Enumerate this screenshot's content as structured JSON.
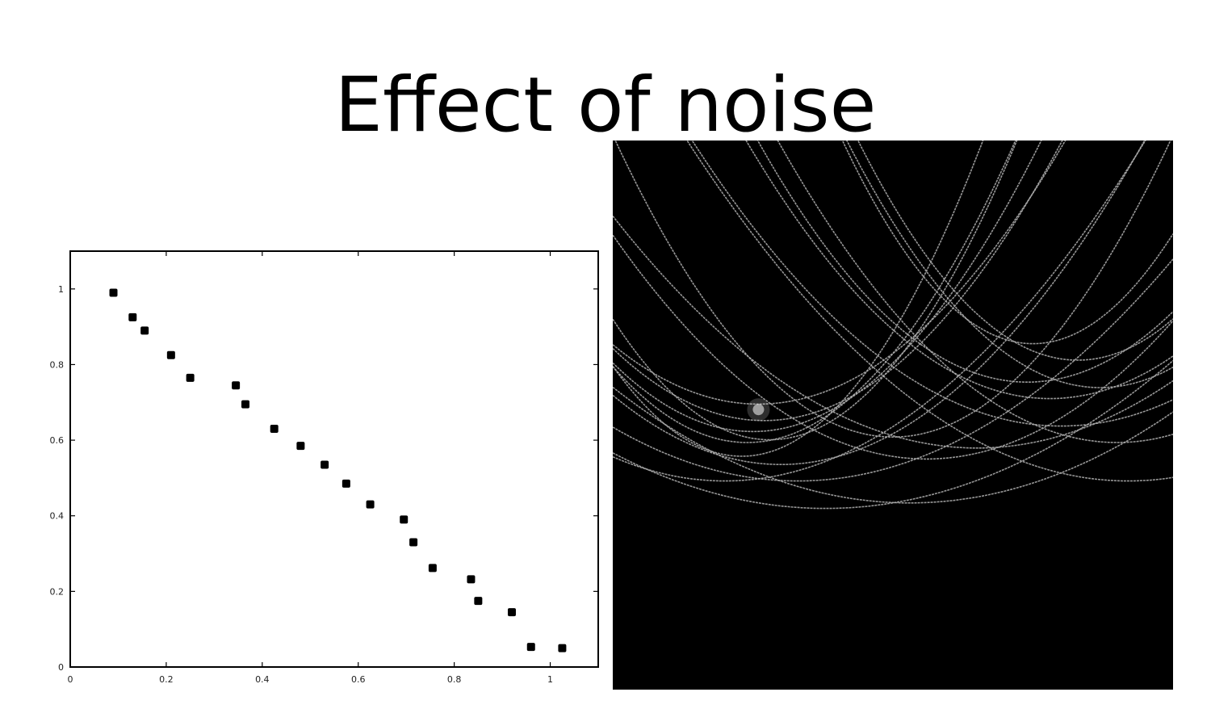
{
  "slide": {
    "title": "Effect of noise"
  },
  "chart_data": [
    {
      "type": "scatter",
      "title": "",
      "xlabel": "",
      "ylabel": "",
      "xlim": [
        0,
        1.1
      ],
      "ylim": [
        0,
        1.1
      ],
      "xticks": [
        0,
        0.2,
        0.4,
        0.6,
        0.8,
        1
      ],
      "xtick_labels": [
        "0",
        "0.2",
        "0.4",
        "0.6",
        "0.8",
        "1"
      ],
      "yticks": [
        0,
        0.2,
        0.4,
        0.6,
        0.8,
        1
      ],
      "ytick_labels": [
        "0",
        "0.2",
        "0.4",
        "0.6",
        "0.8",
        "1"
      ],
      "grid": false,
      "marker_color": "#000000",
      "points": [
        {
          "x": 0.09,
          "y": 0.99
        },
        {
          "x": 0.13,
          "y": 0.925
        },
        {
          "x": 0.155,
          "y": 0.89
        },
        {
          "x": 0.21,
          "y": 0.825
        },
        {
          "x": 0.25,
          "y": 0.765
        },
        {
          "x": 0.345,
          "y": 0.745
        },
        {
          "x": 0.365,
          "y": 0.695
        },
        {
          "x": 0.425,
          "y": 0.63
        },
        {
          "x": 0.48,
          "y": 0.585
        },
        {
          "x": 0.53,
          "y": 0.535
        },
        {
          "x": 0.575,
          "y": 0.485
        },
        {
          "x": 0.625,
          "y": 0.43
        },
        {
          "x": 0.695,
          "y": 0.39
        },
        {
          "x": 0.715,
          "y": 0.33
        },
        {
          "x": 0.755,
          "y": 0.262
        },
        {
          "x": 0.835,
          "y": 0.232
        },
        {
          "x": 0.85,
          "y": 0.175
        },
        {
          "x": 0.92,
          "y": 0.145
        },
        {
          "x": 0.96,
          "y": 0.053
        },
        {
          "x": 1.025,
          "y": 0.05
        }
      ]
    },
    {
      "type": "heatmap",
      "title": "",
      "background": "#000000",
      "line_color": "#b0b0b0",
      "peak_color": "#ffffff",
      "curves": [
        {
          "vertex": [
            0.26,
            0.48
          ],
          "k": 1.6
        },
        {
          "vertex": [
            0.27,
            0.51
          ],
          "k": 1.8
        },
        {
          "vertex": [
            0.25,
            0.53
          ],
          "k": 2.0
        },
        {
          "vertex": [
            0.24,
            0.55
          ],
          "k": 2.4
        },
        {
          "vertex": [
            0.28,
            0.545
          ],
          "k": 2.8
        },
        {
          "vertex": [
            0.23,
            0.575
          ],
          "k": 3.1
        },
        {
          "vertex": [
            0.3,
            0.59
          ],
          "k": 1.4
        },
        {
          "vertex": [
            0.2,
            0.62
          ],
          "k": 1.1
        },
        {
          "vertex": [
            0.33,
            0.62
          ],
          "k": 0.9
        },
        {
          "vertex": [
            0.38,
            0.67
          ],
          "k": 0.7
        },
        {
          "vertex": [
            0.53,
            0.66
          ],
          "k": 0.75
        },
        {
          "vertex": [
            0.56,
            0.58
          ],
          "k": 1.3
        },
        {
          "vertex": [
            0.5,
            0.54
          ],
          "k": 2.2
        },
        {
          "vertex": [
            0.65,
            0.56
          ],
          "k": 1.0
        },
        {
          "vertex": [
            0.74,
            0.44
          ],
          "k": 1.9
        },
        {
          "vertex": [
            0.78,
            0.47
          ],
          "k": 1.6
        },
        {
          "vertex": [
            0.8,
            0.52
          ],
          "k": 1.2
        },
        {
          "vertex": [
            0.75,
            0.37
          ],
          "k": 3.2
        },
        {
          "vertex": [
            0.83,
            0.4
          ],
          "k": 2.6
        },
        {
          "vertex": [
            0.87,
            0.45
          ],
          "k": 2.2
        },
        {
          "vertex": [
            0.9,
            0.55
          ],
          "k": 1.5
        },
        {
          "vertex": [
            0.92,
            0.62
          ],
          "k": 1.0
        }
      ],
      "peak": {
        "x": 0.26,
        "y": 0.49
      }
    }
  ]
}
